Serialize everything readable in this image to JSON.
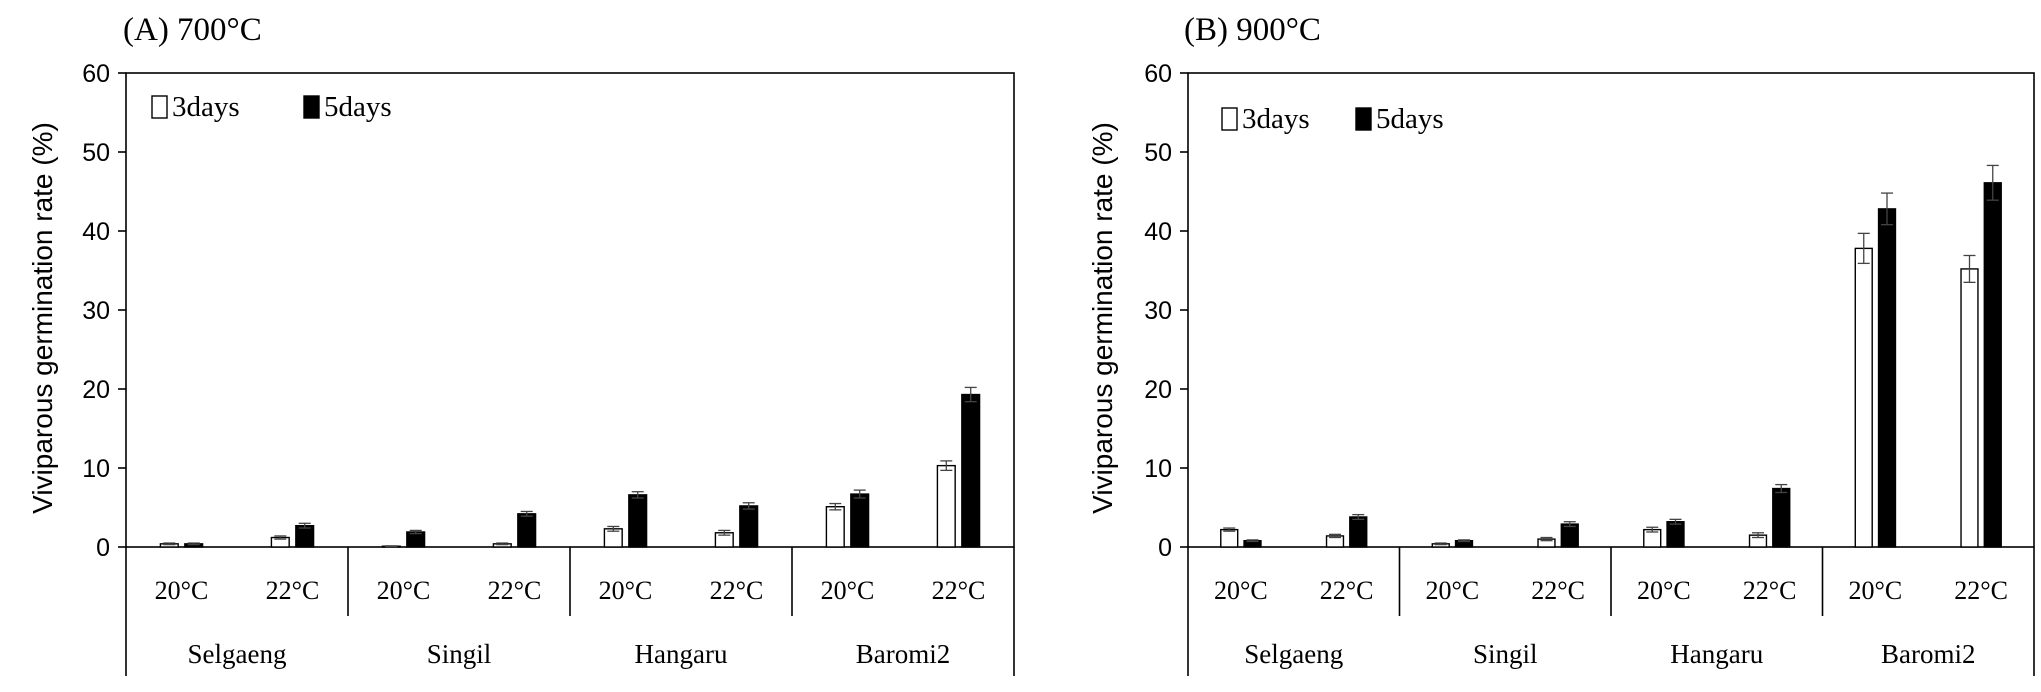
{
  "chart_data": [
    {
      "type": "bar",
      "title": "(A)  700°C",
      "ylabel": "Viviparous germination rate (%)",
      "xlabel": "",
      "ylim": [
        0,
        60
      ],
      "yticks": [
        0,
        10,
        20,
        30,
        40,
        50,
        60
      ],
      "groups": [
        "Selgaeng",
        "Singil",
        "Hangaru",
        "Baromi2"
      ],
      "subcategories": [
        "20°C",
        "22°C"
      ],
      "categories": [
        "20°C",
        "22°C",
        "20°C",
        "22°C",
        "20°C",
        "22°C",
        "20°C",
        "22°C"
      ],
      "series": [
        {
          "name": "3days",
          "color": "#ffffff",
          "values": [
            0.4,
            1.2,
            0.1,
            0.4,
            2.3,
            1.8,
            5.1,
            10.3
          ],
          "errors": [
            0.1,
            0.2,
            0.05,
            0.1,
            0.3,
            0.3,
            0.4,
            0.6
          ]
        },
        {
          "name": "5days",
          "color": "#000000",
          "values": [
            0.4,
            2.7,
            1.9,
            4.2,
            6.6,
            5.2,
            6.7,
            19.3
          ],
          "errors": [
            0.1,
            0.3,
            0.2,
            0.3,
            0.4,
            0.4,
            0.5,
            0.9
          ]
        }
      ],
      "legend": "top-left",
      "grid": false
    },
    {
      "type": "bar",
      "title": "(B)  900°C",
      "ylabel": "Viviparous germination rate (%)",
      "xlabel": "",
      "ylim": [
        0,
        60
      ],
      "yticks": [
        0,
        10,
        20,
        30,
        40,
        50,
        60
      ],
      "groups": [
        "Selgaeng",
        "Singil",
        "Hangaru",
        "Baromi2"
      ],
      "subcategories": [
        "20°C",
        "22°C"
      ],
      "categories": [
        "20°C",
        "22°C",
        "20°C",
        "22°C",
        "20°C",
        "22°C",
        "20°C",
        "22°C"
      ],
      "series": [
        {
          "name": "3days",
          "color": "#ffffff",
          "values": [
            2.2,
            1.4,
            0.4,
            1.0,
            2.2,
            1.5,
            37.8,
            35.2
          ],
          "errors": [
            0.2,
            0.2,
            0.1,
            0.2,
            0.3,
            0.3,
            1.9,
            1.7
          ]
        },
        {
          "name": "5days",
          "color": "#000000",
          "values": [
            0.8,
            3.8,
            0.8,
            2.9,
            3.2,
            7.4,
            42.8,
            46.1
          ],
          "errors": [
            0.1,
            0.3,
            0.1,
            0.3,
            0.3,
            0.5,
            2.0,
            2.2
          ]
        }
      ],
      "legend": "top-left",
      "grid": false
    }
  ]
}
